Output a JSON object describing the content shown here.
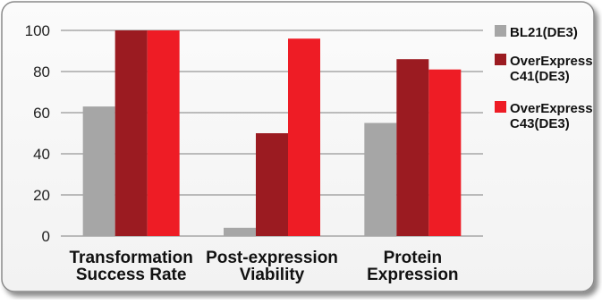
{
  "chart_data": {
    "type": "bar",
    "categories": [
      [
        "Transformation",
        "Success Rate"
      ],
      [
        "Post-expression",
        "Viability"
      ],
      [
        "Protein",
        "Expression"
      ]
    ],
    "series": [
      {
        "name": "BL21(DE3)",
        "values": [
          63,
          4,
          55
        ],
        "color": "#a6a6a6"
      },
      {
        "name": [
          "OverExpress",
          "C41(DE3)"
        ],
        "values": [
          100,
          50,
          86
        ],
        "color": "#9b1b21"
      },
      {
        "name": [
          "OverExpress",
          "C43(DE3)"
        ],
        "values": [
          100,
          96,
          81
        ],
        "color": "#ee1c25"
      }
    ],
    "y_ticks": [
      0,
      20,
      40,
      60,
      80,
      100
    ],
    "ylim": [
      0,
      100
    ],
    "grid": true,
    "legend_position": "right"
  }
}
